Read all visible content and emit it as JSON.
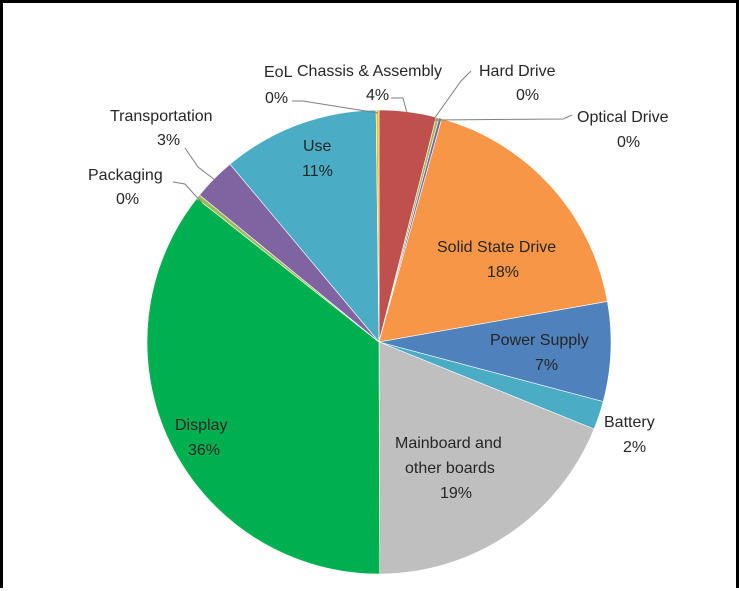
{
  "chart_data": {
    "type": "pie",
    "start_angle_deg": 0,
    "direction": "clockwise",
    "slices": [
      {
        "name": "Chassis & Assembly",
        "value": 4,
        "label_value": "4%",
        "color": "#c0504d"
      },
      {
        "name": "Hard Drive",
        "value": 0.2,
        "label_value": "0%",
        "color": "#9bbb59"
      },
      {
        "name": "Optical Drive",
        "value": 0.2,
        "label_value": "0%",
        "color": "#8064a2"
      },
      {
        "name": "Solid State Drive",
        "value": 18,
        "label_value": "18%",
        "color": "#f79646"
      },
      {
        "name": "Power Supply",
        "value": 7,
        "label_value": "7%",
        "color": "#4f81bd"
      },
      {
        "name": "Battery",
        "value": 2,
        "label_value": "2%",
        "color": "#4bacc6"
      },
      {
        "name": "Mainboard and other boards",
        "value": 19,
        "label_value": "19%",
        "color": "#bfbfbf"
      },
      {
        "name": "Display",
        "value": 36,
        "label_value": "36%",
        "color": "#00b050"
      },
      {
        "name": "Packaging",
        "value": 0.3,
        "label_value": "0%",
        "color": "#9bbb59"
      },
      {
        "name": "Transportation",
        "value": 3,
        "label_value": "3%",
        "color": "#8064a2"
      },
      {
        "name": "Use",
        "value": 11,
        "label_value": "11%",
        "color": "#4bacc6"
      },
      {
        "name": "EoL",
        "value": 0.2,
        "label_value": "0%",
        "color": "#f2c314"
      }
    ],
    "labels": {
      "chassis": {
        "name": "Chassis & Assembly",
        "value": "4%"
      },
      "hard_drive": {
        "name": "Hard Drive",
        "value": "0%"
      },
      "optical_drive": {
        "name": "Optical Drive",
        "value": "0%"
      },
      "ssd": {
        "name": "Solid State Drive",
        "value": "18%"
      },
      "power_supply": {
        "name": "Power Supply",
        "value": "7%"
      },
      "battery": {
        "name": "Battery",
        "value": "2%"
      },
      "mainboard": {
        "line1": "Mainboard and",
        "line2": "other boards",
        "value": "19%"
      },
      "display": {
        "name": "Display",
        "value": "36%"
      },
      "packaging": {
        "name": "Packaging",
        "value": "0%"
      },
      "transportation": {
        "name": "Transportation",
        "value": "3%"
      },
      "use": {
        "name": "Use",
        "value": "11%"
      },
      "eol": {
        "name": "EoL",
        "value": "0%"
      }
    }
  }
}
